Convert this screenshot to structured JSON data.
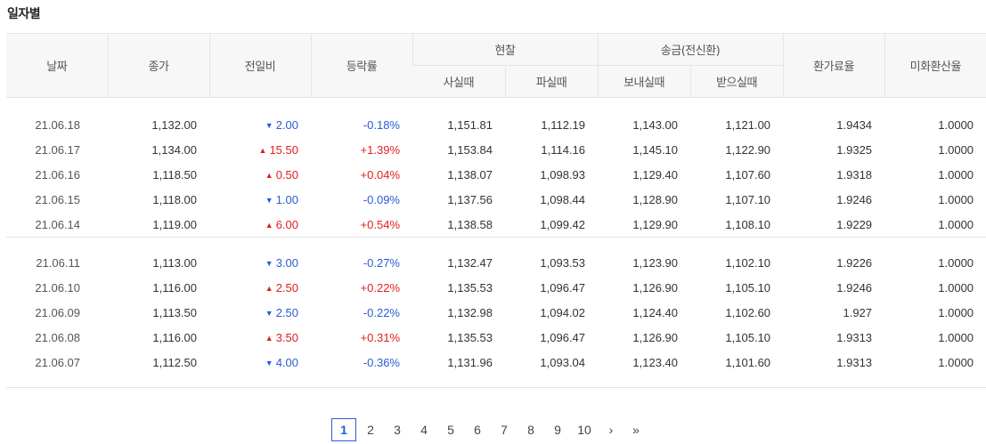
{
  "title": "일자별",
  "colors": {
    "up": "#e02020",
    "down": "#2a5bd7",
    "header_bg": "#f7f7f8",
    "active_page": "#2a5bd7"
  },
  "headers": {
    "date": "날짜",
    "close": "종가",
    "change": "전일비",
    "rate": "등락률",
    "cash": "현찰",
    "cash_buy": "사실때",
    "cash_sell": "파실때",
    "wire": "송금(전신환)",
    "wire_send": "보내실때",
    "wire_receive": "받으실때",
    "exchange_fee": "환가료율",
    "usd_conv": "미화환산율"
  },
  "groups": [
    {
      "rows": [
        {
          "date": "21.06.18",
          "close": "1,132.00",
          "dir": "down",
          "change": "2.00",
          "rate": "-0.18%",
          "cash_buy": "1,151.81",
          "cash_sell": "1,112.19",
          "send": "1,143.00",
          "receive": "1,121.00",
          "fee": "1.9434",
          "conv": "1.0000"
        },
        {
          "date": "21.06.17",
          "close": "1,134.00",
          "dir": "up",
          "change": "15.50",
          "rate": "+1.39%",
          "cash_buy": "1,153.84",
          "cash_sell": "1,114.16",
          "send": "1,145.10",
          "receive": "1,122.90",
          "fee": "1.9325",
          "conv": "1.0000"
        },
        {
          "date": "21.06.16",
          "close": "1,118.50",
          "dir": "up",
          "change": "0.50",
          "rate": "+0.04%",
          "cash_buy": "1,138.07",
          "cash_sell": "1,098.93",
          "send": "1,129.40",
          "receive": "1,107.60",
          "fee": "1.9318",
          "conv": "1.0000"
        },
        {
          "date": "21.06.15",
          "close": "1,118.00",
          "dir": "down",
          "change": "1.00",
          "rate": "-0.09%",
          "cash_buy": "1,137.56",
          "cash_sell": "1,098.44",
          "send": "1,128.90",
          "receive": "1,107.10",
          "fee": "1.9246",
          "conv": "1.0000"
        },
        {
          "date": "21.06.14",
          "close": "1,119.00",
          "dir": "up",
          "change": "6.00",
          "rate": "+0.54%",
          "cash_buy": "1,138.58",
          "cash_sell": "1,099.42",
          "send": "1,129.90",
          "receive": "1,108.10",
          "fee": "1.9229",
          "conv": "1.0000"
        }
      ]
    },
    {
      "rows": [
        {
          "date": "21.06.11",
          "close": "1,113.00",
          "dir": "down",
          "change": "3.00",
          "rate": "-0.27%",
          "cash_buy": "1,132.47",
          "cash_sell": "1,093.53",
          "send": "1,123.90",
          "receive": "1,102.10",
          "fee": "1.9226",
          "conv": "1.0000"
        },
        {
          "date": "21.06.10",
          "close": "1,116.00",
          "dir": "up",
          "change": "2.50",
          "rate": "+0.22%",
          "cash_buy": "1,135.53",
          "cash_sell": "1,096.47",
          "send": "1,126.90",
          "receive": "1,105.10",
          "fee": "1.9246",
          "conv": "1.0000"
        },
        {
          "date": "21.06.09",
          "close": "1,113.50",
          "dir": "down",
          "change": "2.50",
          "rate": "-0.22%",
          "cash_buy": "1,132.98",
          "cash_sell": "1,094.02",
          "send": "1,124.40",
          "receive": "1,102.60",
          "fee": "1.927",
          "conv": "1.0000"
        },
        {
          "date": "21.06.08",
          "close": "1,116.00",
          "dir": "up",
          "change": "3.50",
          "rate": "+0.31%",
          "cash_buy": "1,135.53",
          "cash_sell": "1,096.47",
          "send": "1,126.90",
          "receive": "1,105.10",
          "fee": "1.9313",
          "conv": "1.0000"
        },
        {
          "date": "21.06.07",
          "close": "1,112.50",
          "dir": "down",
          "change": "4.00",
          "rate": "-0.36%",
          "cash_buy": "1,131.96",
          "cash_sell": "1,093.04",
          "send": "1,123.40",
          "receive": "1,101.60",
          "fee": "1.9313",
          "conv": "1.0000"
        }
      ]
    }
  ],
  "pagination": {
    "pages": [
      "1",
      "2",
      "3",
      "4",
      "5",
      "6",
      "7",
      "8",
      "9",
      "10"
    ],
    "current": "1",
    "next_icon": "›",
    "last_icon": "»"
  }
}
